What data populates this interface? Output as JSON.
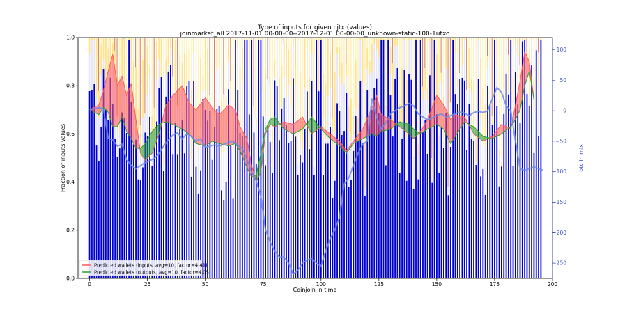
{
  "chart_data": {
    "type": "bar",
    "title": "Type of inputs for given cjtx (values)",
    "subtitle": "joinmarket_all 2017-11-01 00-00-00--2017-12-01 00-00-00_unknown-static-100-1utxo",
    "xlabel": "Coinjoin in time",
    "ylabel": "Fraction of inputs values",
    "y2label": "btc in mix",
    "xlim": [
      -5,
      200
    ],
    "ylim": [
      0,
      1
    ],
    "y2lim": [
      -275,
      120
    ],
    "xticks": [
      "0",
      "25",
      "50",
      "75",
      "100",
      "125",
      "150",
      "175",
      "200"
    ],
    "yticks": [
      "0.0",
      "0.2",
      "0.4",
      "0.6",
      "0.8",
      "1.0"
    ],
    "y2ticks": [
      "100",
      "50",
      "0",
      "−50",
      "−100",
      "−150",
      "−200",
      "−250"
    ],
    "grid": false,
    "legend_position": "bottom-left",
    "n_coinjoins": 196,
    "bar_colors": [
      "#0000cc",
      "#e6e6fa",
      "#ffe28a",
      "#fff4c4",
      "#b22222"
    ],
    "inputs_band_color": "#ff5a5a",
    "outputs_band_color": "#2ca02c",
    "btc_line_color": "#6f8ae8",
    "axis2_color": "#3f51c6",
    "legend": [
      {
        "label": "Predicted wallets (inputs, avg=10, factor=4.41)",
        "color": "#ff5a5a"
      },
      {
        "label": "Predicted wallets (outputs, avg=10, factor=4.05)",
        "color": "#2ca02c"
      }
    ],
    "predicted_inputs_anchors": [
      [
        0,
        0.7
      ],
      [
        4,
        0.72
      ],
      [
        6,
        0.78
      ],
      [
        8,
        0.86
      ],
      [
        10,
        0.93
      ],
      [
        12,
        0.8
      ],
      [
        14,
        0.84
      ],
      [
        16,
        0.76
      ],
      [
        18,
        0.81
      ],
      [
        20,
        0.66
      ],
      [
        22,
        0.52
      ],
      [
        24,
        0.49
      ],
      [
        27,
        0.52
      ],
      [
        30,
        0.6
      ],
      [
        33,
        0.72
      ],
      [
        36,
        0.76
      ],
      [
        40,
        0.8
      ],
      [
        43,
        0.73
      ],
      [
        46,
        0.7
      ],
      [
        50,
        0.75
      ],
      [
        53,
        0.71
      ],
      [
        56,
        0.68
      ],
      [
        60,
        0.72
      ],
      [
        63,
        0.7
      ],
      [
        65,
        0.63
      ],
      [
        68,
        0.58
      ],
      [
        70,
        0.47
      ],
      [
        72,
        0.4
      ],
      [
        74,
        0.44
      ],
      [
        76,
        0.6
      ],
      [
        78,
        0.64
      ],
      [
        80,
        0.63
      ],
      [
        84,
        0.65
      ],
      [
        88,
        0.64
      ],
      [
        92,
        0.67
      ],
      [
        96,
        0.6
      ],
      [
        100,
        0.63
      ],
      [
        104,
        0.6
      ],
      [
        108,
        0.57
      ],
      [
        111,
        0.53
      ],
      [
        114,
        0.57
      ],
      [
        118,
        0.62
      ],
      [
        122,
        0.71
      ],
      [
        124,
        0.76
      ],
      [
        126,
        0.68
      ],
      [
        130,
        0.66
      ],
      [
        134,
        0.63
      ],
      [
        138,
        0.6
      ],
      [
        140,
        0.58
      ],
      [
        143,
        0.61
      ],
      [
        146,
        0.66
      ],
      [
        150,
        0.76
      ],
      [
        153,
        0.72
      ],
      [
        156,
        0.66
      ],
      [
        158,
        0.68
      ],
      [
        162,
        0.67
      ],
      [
        166,
        0.6
      ],
      [
        170,
        0.57
      ],
      [
        174,
        0.59
      ],
      [
        178,
        0.64
      ],
      [
        182,
        0.62
      ],
      [
        184,
        0.72
      ],
      [
        186,
        0.82
      ],
      [
        188,
        0.94
      ],
      [
        190,
        0.9
      ],
      [
        192,
        0.74
      ]
    ],
    "predicted_outputs_anchors": [
      [
        0,
        0.7
      ],
      [
        4,
        0.68
      ],
      [
        6,
        0.71
      ],
      [
        8,
        0.69
      ],
      [
        10,
        0.63
      ],
      [
        12,
        0.63
      ],
      [
        14,
        0.67
      ],
      [
        16,
        0.61
      ],
      [
        18,
        0.58
      ],
      [
        20,
        0.54
      ],
      [
        22,
        0.54
      ],
      [
        24,
        0.56
      ],
      [
        27,
        0.61
      ],
      [
        30,
        0.64
      ],
      [
        33,
        0.65
      ],
      [
        36,
        0.64
      ],
      [
        40,
        0.62
      ],
      [
        43,
        0.6
      ],
      [
        46,
        0.56
      ],
      [
        50,
        0.55
      ],
      [
        53,
        0.57
      ],
      [
        56,
        0.56
      ],
      [
        60,
        0.55
      ],
      [
        63,
        0.56
      ],
      [
        65,
        0.53
      ],
      [
        68,
        0.46
      ],
      [
        70,
        0.42
      ],
      [
        72,
        0.43
      ],
      [
        74,
        0.52
      ],
      [
        76,
        0.62
      ],
      [
        78,
        0.66
      ],
      [
        80,
        0.67
      ],
      [
        84,
        0.62
      ],
      [
        88,
        0.6
      ],
      [
        92,
        0.62
      ],
      [
        96,
        0.67
      ],
      [
        100,
        0.62
      ],
      [
        104,
        0.58
      ],
      [
        108,
        0.55
      ],
      [
        111,
        0.52
      ],
      [
        114,
        0.56
      ],
      [
        118,
        0.58
      ],
      [
        122,
        0.6
      ],
      [
        124,
        0.59
      ],
      [
        126,
        0.61
      ],
      [
        130,
        0.62
      ],
      [
        134,
        0.65
      ],
      [
        138,
        0.64
      ],
      [
        140,
        0.62
      ],
      [
        143,
        0.6
      ],
      [
        146,
        0.62
      ],
      [
        150,
        0.64
      ],
      [
        153,
        0.62
      ],
      [
        156,
        0.56
      ],
      [
        158,
        0.59
      ],
      [
        162,
        0.65
      ],
      [
        166,
        0.63
      ],
      [
        170,
        0.59
      ],
      [
        174,
        0.58
      ],
      [
        178,
        0.6
      ],
      [
        182,
        0.63
      ],
      [
        184,
        0.66
      ],
      [
        186,
        0.7
      ],
      [
        188,
        0.8
      ],
      [
        190,
        0.86
      ],
      [
        192,
        0.74
      ]
    ],
    "btc_in_mix_anchors": [
      [
        0,
        2
      ],
      [
        2,
        3
      ],
      [
        4,
        5
      ],
      [
        6,
        3
      ],
      [
        8,
        -45
      ],
      [
        10,
        -48
      ],
      [
        12,
        -58
      ],
      [
        14,
        -55
      ],
      [
        16,
        -80
      ],
      [
        18,
        -90
      ],
      [
        20,
        -95
      ],
      [
        22,
        -90
      ],
      [
        24,
        -85
      ],
      [
        26,
        -82
      ],
      [
        28,
        -78
      ],
      [
        30,
        -70
      ],
      [
        32,
        -58
      ],
      [
        34,
        -48
      ],
      [
        36,
        -40
      ],
      [
        38,
        -36
      ],
      [
        40,
        -46
      ],
      [
        42,
        -38
      ],
      [
        44,
        -42
      ],
      [
        46,
        -50
      ],
      [
        48,
        -46
      ],
      [
        50,
        -60
      ],
      [
        52,
        -58
      ],
      [
        54,
        -56
      ],
      [
        56,
        -58
      ],
      [
        58,
        -55
      ],
      [
        60,
        -52
      ],
      [
        62,
        -50
      ],
      [
        64,
        -56
      ],
      [
        66,
        -62
      ],
      [
        68,
        -80
      ],
      [
        70,
        -100
      ],
      [
        72,
        -115
      ],
      [
        74,
        -140
      ],
      [
        76,
        -195
      ],
      [
        78,
        -215
      ],
      [
        80,
        -230
      ],
      [
        82,
        -240
      ],
      [
        84,
        -240
      ],
      [
        86,
        -250
      ],
      [
        88,
        -268
      ],
      [
        90,
        -262
      ],
      [
        92,
        -250
      ],
      [
        94,
        -245
      ],
      [
        96,
        -242
      ],
      [
        98,
        -250
      ],
      [
        100,
        -255
      ],
      [
        102,
        -230
      ],
      [
        104,
        -210
      ],
      [
        106,
        -195
      ],
      [
        108,
        -175
      ],
      [
        110,
        -120
      ],
      [
        112,
        -110
      ],
      [
        114,
        -90
      ],
      [
        116,
        -70
      ],
      [
        118,
        -55
      ],
      [
        120,
        -50
      ],
      [
        122,
        20
      ],
      [
        124,
        -10
      ],
      [
        126,
        -30
      ],
      [
        128,
        -20
      ],
      [
        130,
        -5
      ],
      [
        132,
        0
      ],
      [
        134,
        5
      ],
      [
        136,
        8
      ],
      [
        138,
        12
      ],
      [
        140,
        8
      ],
      [
        142,
        -5
      ],
      [
        144,
        -10
      ],
      [
        146,
        -15
      ],
      [
        148,
        -12
      ],
      [
        150,
        -8
      ],
      [
        152,
        -5
      ],
      [
        154,
        -10
      ],
      [
        156,
        -8
      ],
      [
        158,
        -5
      ],
      [
        160,
        -2
      ],
      [
        162,
        -4
      ],
      [
        164,
        -8
      ],
      [
        166,
        -3
      ],
      [
        168,
        -1
      ],
      [
        170,
        -3
      ],
      [
        172,
        0
      ],
      [
        174,
        20
      ],
      [
        176,
        38
      ],
      [
        178,
        30
      ],
      [
        180,
        8
      ],
      [
        182,
        0
      ],
      [
        184,
        -50
      ],
      [
        186,
        -95
      ],
      [
        188,
        -98
      ],
      [
        190,
        -95
      ],
      [
        192,
        -92
      ],
      [
        194,
        -95
      ],
      [
        196,
        -98
      ]
    ]
  }
}
